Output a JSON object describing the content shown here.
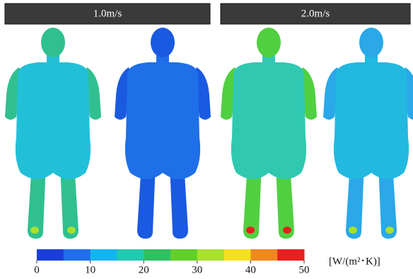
{
  "panels": [
    {
      "title": "1.0m/s"
    },
    {
      "title": "2.0m/s"
    }
  ],
  "colorbar": {
    "ticks": [
      0,
      10,
      20,
      30,
      40,
      50
    ],
    "range": [
      0,
      50
    ],
    "colors": [
      "#1a3fd6",
      "#1f6fe8",
      "#14b4f0",
      "#22c9b0",
      "#2fc060",
      "#5fd02a",
      "#a8e030",
      "#f4e020",
      "#f08820",
      "#e82020"
    ],
    "unit": "[W/(m²･K)]"
  }
}
